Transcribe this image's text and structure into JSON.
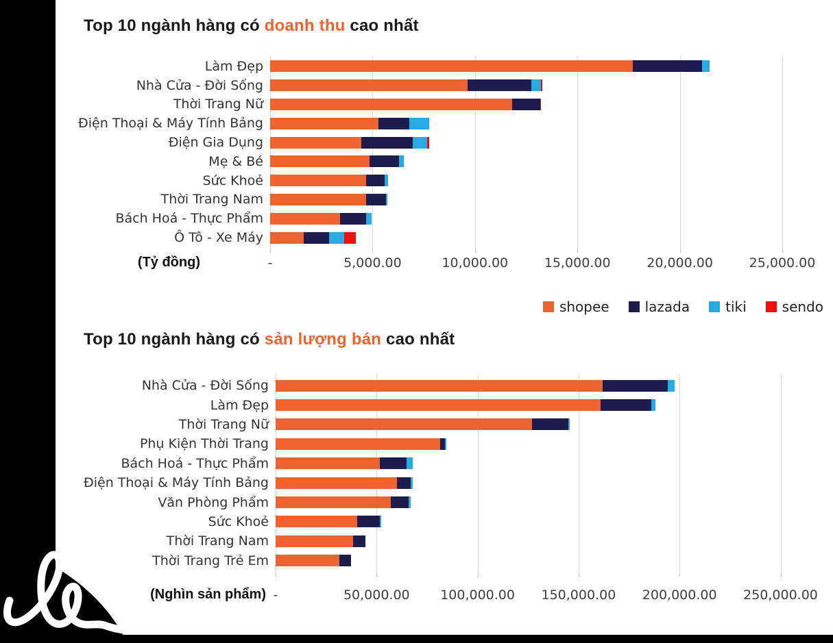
{
  "page": {
    "background": "#ffffff",
    "left_strip_color": "#000000",
    "bottom_strip_color": "#000000",
    "decor_icon": "handwritten-squiggle"
  },
  "legend": {
    "items": [
      {
        "label": "shopee",
        "color": "#ED6430"
      },
      {
        "label": "lazada",
        "color": "#1E1C4D"
      },
      {
        "label": "tiki",
        "color": "#27AAE1"
      },
      {
        "label": "sendo",
        "color": "#F20D0D"
      }
    ]
  },
  "chart_data": [
    {
      "type": "bar",
      "orientation": "horizontal",
      "stacked": true,
      "title_prefix": "Top 10 ngành hàng có ",
      "title_highlight": "doanh thu",
      "title_suffix": " cao nhất",
      "unit_label": "(Tỷ đồng)",
      "axis": {
        "ticks": [
          "-",
          "5,000.00",
          "10,000.00",
          "15,000.00",
          "20,000.00",
          "25,000.00"
        ],
        "tick_step": 5000,
        "max": 25000,
        "grid": true
      },
      "legend_position": "below-right",
      "categories": [
        "Làm Đẹp",
        "Nhà Cửa - Đời Sống",
        "Thời Trang Nữ",
        "Điện Thoại & Máy Tính Bảng",
        "Điện Gia Dụng",
        "Mẹ & Bé",
        "Sức Khoẻ",
        "Thời Trang Nam",
        "Bách Hoá - Thực Phẩm",
        "Ô Tô - Xe Máy"
      ],
      "series": [
        {
          "name": "shopee",
          "color": "#ED6430",
          "values": [
            17700,
            9650,
            11800,
            5300,
            4450,
            4850,
            4700,
            4700,
            3400,
            1650
          ]
        },
        {
          "name": "lazada",
          "color": "#1E1C4D",
          "values": [
            3400,
            3100,
            1380,
            1500,
            2500,
            1450,
            900,
            950,
            1280,
            1220
          ]
        },
        {
          "name": "tiki",
          "color": "#27AAE1",
          "values": [
            350,
            480,
            0,
            950,
            700,
            240,
            170,
            60,
            270,
            740
          ]
        },
        {
          "name": "sendo",
          "color": "#F20D0D",
          "values": [
            0,
            30,
            20,
            0,
            130,
            0,
            0,
            0,
            0,
            570
          ]
        }
      ]
    },
    {
      "type": "bar",
      "orientation": "horizontal",
      "stacked": true,
      "title_prefix": "Top 10 ngành hàng có ",
      "title_highlight": "sản lượng bán",
      "title_suffix": " cao nhất",
      "unit_label": "(Nghìn sản phẩm)",
      "axis": {
        "ticks": [
          "-",
          "50,000.00",
          "100,000.00",
          "150,000.00",
          "200,000.00",
          "250,000.00"
        ],
        "tick_step": 50000,
        "max": 250000,
        "grid": true
      },
      "categories": [
        "Nhà Cửa - Đời Sống",
        "Làm Đẹp",
        "Thời Trang Nữ",
        "Phụ Kiện Thời Trang",
        "Bách Hoá - Thực Phẩm",
        "Điện Thoại & Máy Tính Bảng",
        "Văn Phòng Phẩm",
        "Sức Khoẻ",
        "Thời Trang Nam",
        "Thời Trang Trẻ Em"
      ],
      "series": [
        {
          "name": "shopee",
          "color": "#ED6430",
          "values": [
            162000,
            161000,
            127000,
            81500,
            51500,
            60000,
            57000,
            40500,
            38500,
            31500
          ]
        },
        {
          "name": "lazada",
          "color": "#1E1C4D",
          "values": [
            32000,
            25000,
            18000,
            2500,
            13500,
            7000,
            9000,
            11000,
            6000,
            6000
          ]
        },
        {
          "name": "tiki",
          "color": "#27AAE1",
          "values": [
            3500,
            2000,
            500,
            500,
            3000,
            800,
            800,
            800,
            0,
            0
          ]
        },
        {
          "name": "sendo",
          "color": "#F20D0D",
          "values": [
            0,
            0,
            0,
            0,
            0,
            0,
            0,
            0,
            0,
            0
          ]
        }
      ]
    }
  ]
}
